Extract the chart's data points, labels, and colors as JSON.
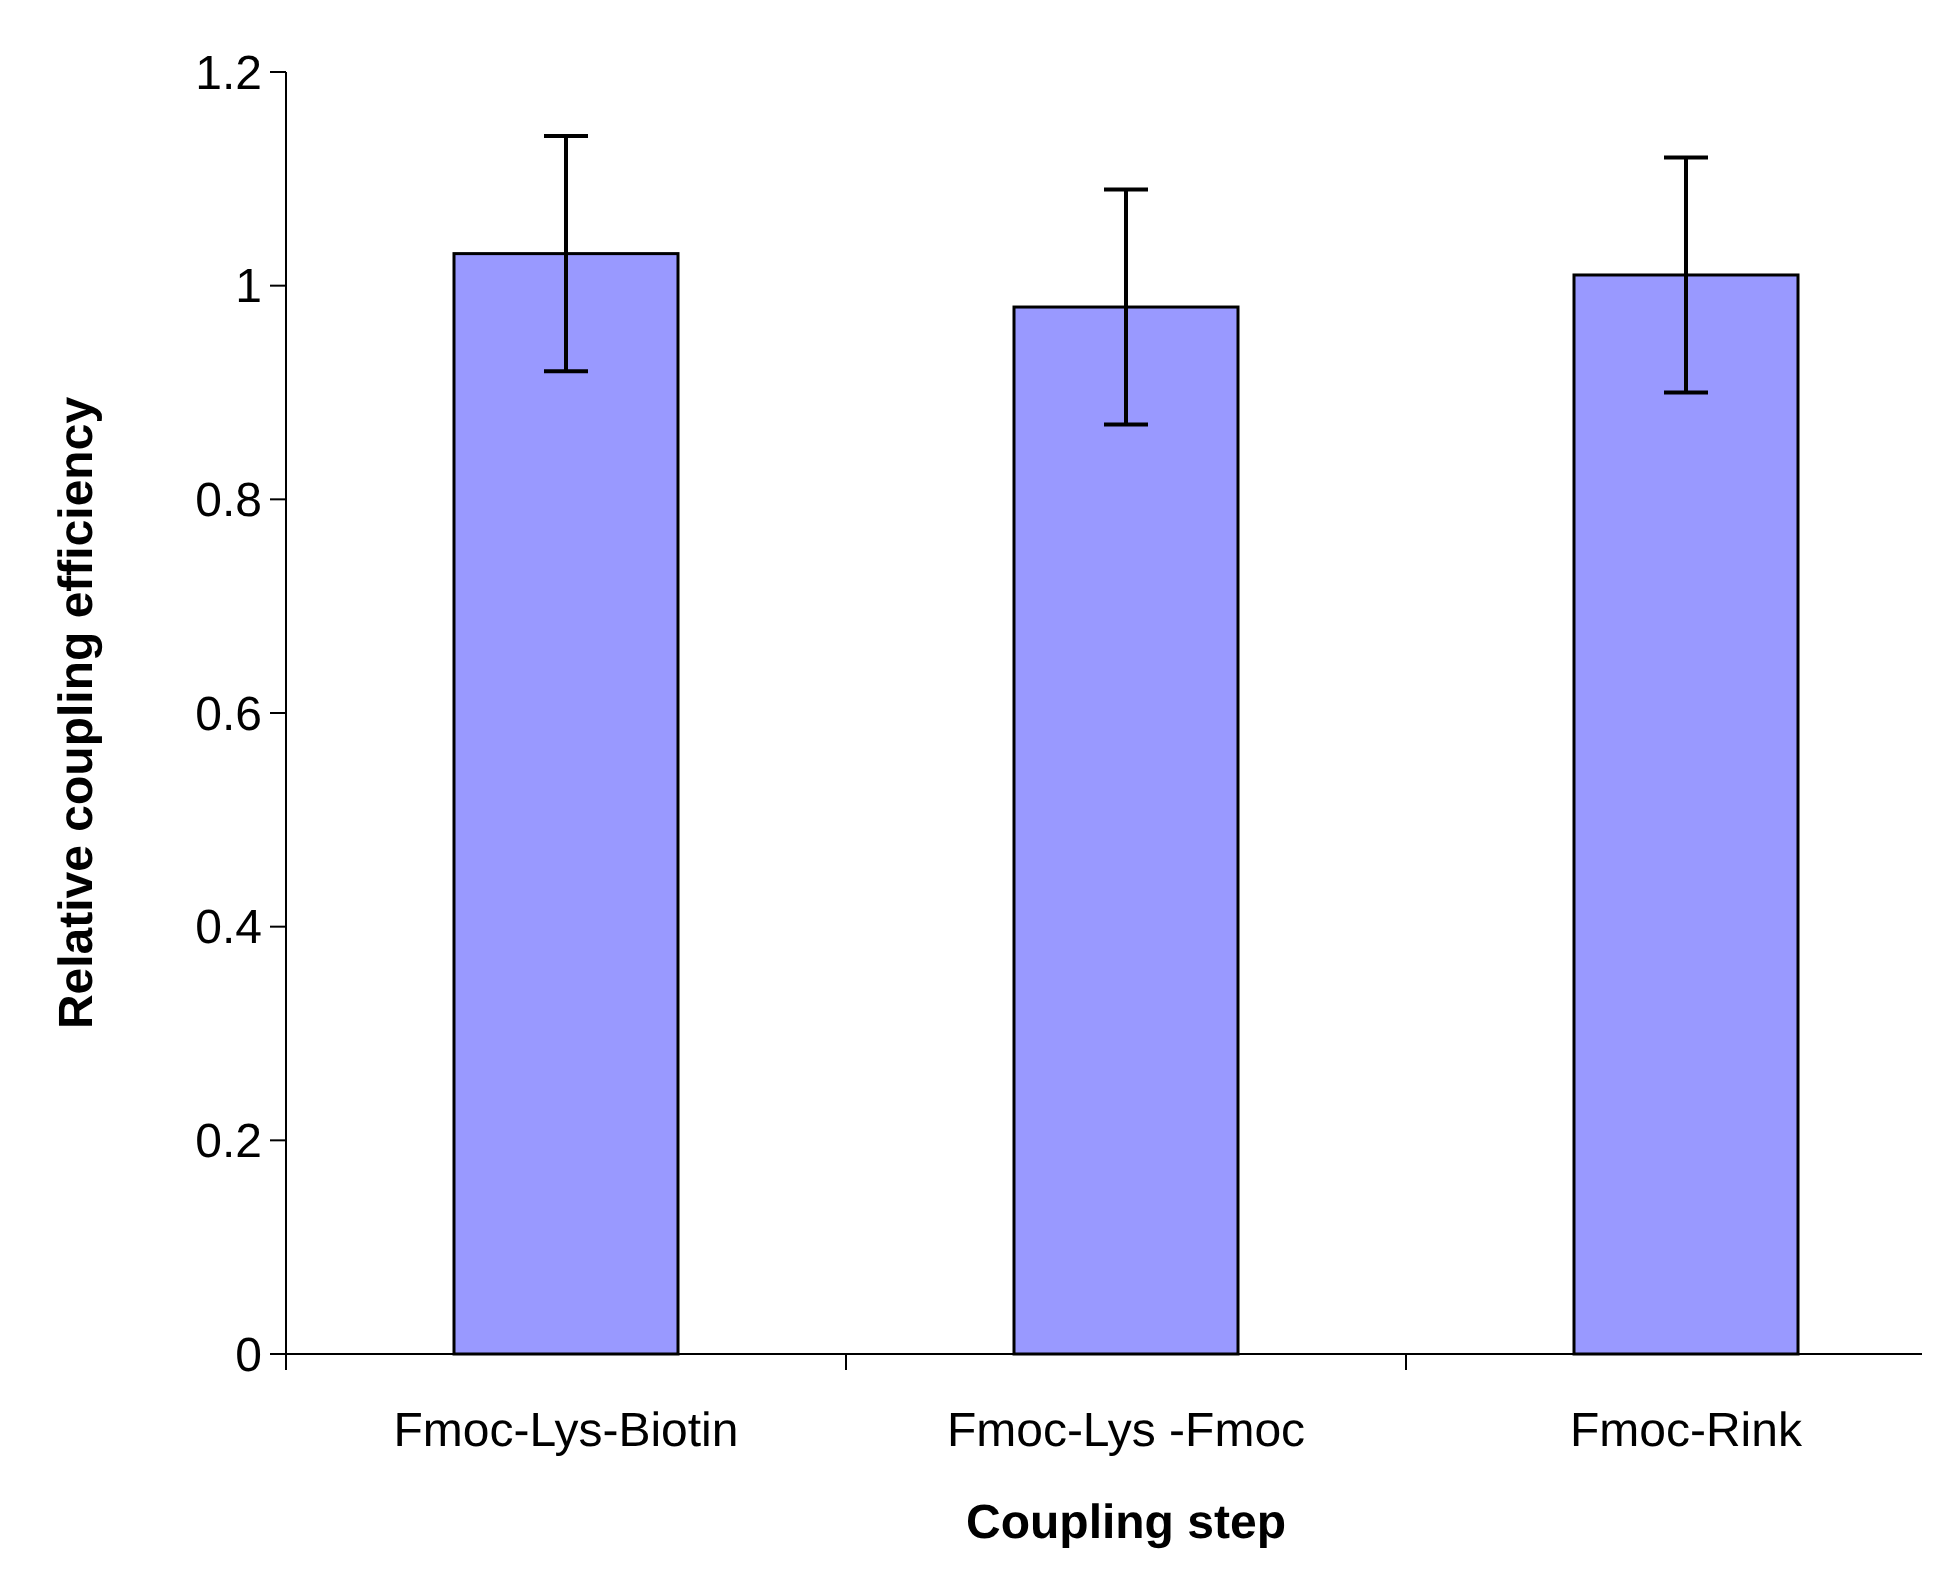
{
  "chart_data": {
    "type": "bar",
    "xlabel": "Coupling step",
    "ylabel": "Relative coupling efficiency",
    "categories": [
      "Fmoc-Lys-Biotin",
      "Fmoc-Lys -Fmoc",
      "Fmoc-Rink"
    ],
    "values": [
      1.03,
      0.98,
      1.01
    ],
    "errors": [
      0.11,
      0.11,
      0.11
    ],
    "color": "#9999ff",
    "ylim": [
      0,
      1.2
    ],
    "yticks": [
      0,
      0.2,
      0.4,
      0.6,
      0.8,
      1,
      1.2
    ],
    "grid": false
  }
}
